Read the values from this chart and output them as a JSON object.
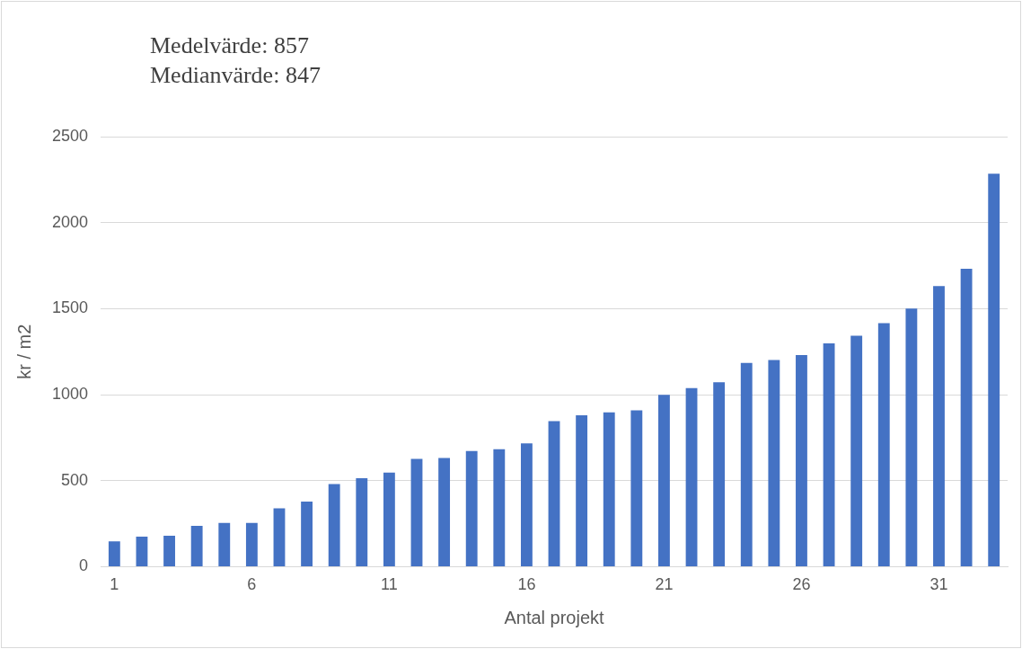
{
  "chart_data": {
    "type": "bar",
    "xlabel": "Antal projekt",
    "ylabel": "kr / m2",
    "annotations": [
      "Medelvärde: 857",
      "Medianvärde: 847"
    ],
    "categories": [
      "1",
      null,
      null,
      null,
      null,
      "6",
      null,
      null,
      null,
      null,
      "11",
      null,
      null,
      null,
      null,
      "16",
      null,
      null,
      null,
      null,
      "21",
      null,
      null,
      null,
      null,
      "26",
      null,
      null,
      null,
      null,
      "31",
      null,
      null
    ],
    "values": [
      147,
      175,
      180,
      237,
      254,
      254,
      339,
      378,
      480,
      514,
      547,
      626,
      632,
      672,
      683,
      717,
      846,
      880,
      897,
      909,
      999,
      1038,
      1072,
      1185,
      1202,
      1230,
      1298,
      1343,
      1416,
      1501,
      1631,
      1732,
      2285
    ],
    "color": "#4472c4",
    "ylim": [
      0,
      2500
    ],
    "yticks": [
      0,
      500,
      1000,
      1500,
      2000,
      2500
    ],
    "grid": "y",
    "legend": false
  }
}
